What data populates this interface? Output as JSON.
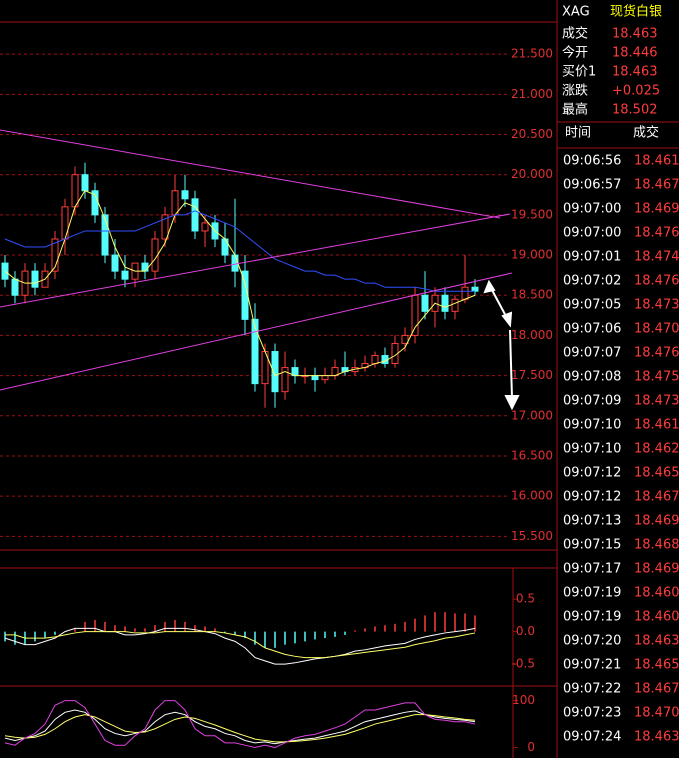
{
  "header": {
    "symbol": "XAG",
    "name": "现货白银"
  },
  "quote": [
    {
      "label": "成交",
      "value": "18.463"
    },
    {
      "label": "今开",
      "value": "18.446"
    },
    {
      "label": "买价1",
      "value": "18.463"
    },
    {
      "label": "涨跌",
      "value": "+0.025"
    },
    {
      "label": "最高",
      "value": "18.502"
    }
  ],
  "trades": {
    "columns": [
      "时间",
      "成交"
    ],
    "rows": [
      [
        "09:06:56",
        "18.461"
      ],
      [
        "09:06:57",
        "18.467"
      ],
      [
        "09:07:00",
        "18.469"
      ],
      [
        "09:07:00",
        "18.476"
      ],
      [
        "09:07:01",
        "18.474"
      ],
      [
        "09:07:02",
        "18.476"
      ],
      [
        "09:07:05",
        "18.473"
      ],
      [
        "09:07:06",
        "18.470"
      ],
      [
        "09:07:07",
        "18.476"
      ],
      [
        "09:07:08",
        "18.475"
      ],
      [
        "09:07:09",
        "18.473"
      ],
      [
        "09:07:10",
        "18.461"
      ],
      [
        "09:07:10",
        "18.462"
      ],
      [
        "09:07:12",
        "18.465"
      ],
      [
        "09:07:12",
        "18.467"
      ],
      [
        "09:07:13",
        "18.469"
      ],
      [
        "09:07:15",
        "18.468"
      ],
      [
        "09:07:17",
        "18.469"
      ],
      [
        "09:07:19",
        "18.460"
      ],
      [
        "09:07:19",
        "18.460"
      ],
      [
        "09:07:20",
        "18.463"
      ],
      [
        "09:07:21",
        "18.465"
      ],
      [
        "09:07:22",
        "18.467"
      ],
      [
        "09:07:23",
        "18.470"
      ],
      [
        "09:07:24",
        "18.463"
      ]
    ]
  },
  "chart_data": [
    {
      "type": "candlestick",
      "grid": true,
      "up_color": "#ff3c3c",
      "down_color": "#54fcfc",
      "ylim": [
        15.33,
        21.9
      ],
      "yticks": [
        {
          "value": 21.5,
          "label": "21.500"
        },
        {
          "value": 21,
          "label": "21.000"
        },
        {
          "value": 20.5,
          "label": "20.500"
        },
        {
          "value": 20,
          "label": "20.000"
        },
        {
          "value": 19.5,
          "label": "19.500"
        },
        {
          "value": 19,
          "label": "19.000"
        },
        {
          "value": 18.5,
          "label": "18.500"
        },
        {
          "value": 18,
          "label": "18.000"
        },
        {
          "value": 17.5,
          "label": "17.500"
        },
        {
          "value": 17,
          "label": "17.000"
        },
        {
          "value": 16.5,
          "label": "16.500"
        },
        {
          "value": 16,
          "label": "16.000"
        },
        {
          "value": 15.5,
          "label": "15.500"
        }
      ],
      "open": [
        18.9,
        18.7,
        18.5,
        18.8,
        18.6,
        18.8,
        19.2,
        19.6,
        20.0,
        19.8,
        19.5,
        19.0,
        18.8,
        18.7,
        18.9,
        18.8,
        19.2,
        19.5,
        19.8,
        19.7,
        19.3,
        19.4,
        19.2,
        19.0,
        18.8,
        18.2,
        17.4,
        17.8,
        17.3,
        17.6,
        17.5,
        17.5,
        17.45,
        17.5,
        17.6,
        17.55,
        17.6,
        17.65,
        17.75,
        17.65,
        17.9,
        18.0,
        18.5,
        18.3,
        18.5,
        18.3,
        18.45,
        18.6
      ],
      "high": [
        19.0,
        18.8,
        18.9,
        18.9,
        18.9,
        19.3,
        19.7,
        20.1,
        20.15,
        19.9,
        19.6,
        19.2,
        19.0,
        18.9,
        19.0,
        19.3,
        19.6,
        20.0,
        20.0,
        19.8,
        19.5,
        19.5,
        19.4,
        19.7,
        19.0,
        18.4,
        17.9,
        17.9,
        17.8,
        17.7,
        17.6,
        17.6,
        17.6,
        17.7,
        17.8,
        17.7,
        17.75,
        17.8,
        17.85,
        18.0,
        18.1,
        18.6,
        18.8,
        18.6,
        18.6,
        18.5,
        19.0,
        18.7
      ],
      "low": [
        18.6,
        18.4,
        18.4,
        18.5,
        18.6,
        18.7,
        19.0,
        19.5,
        19.7,
        19.4,
        18.9,
        18.7,
        18.6,
        18.6,
        18.7,
        18.7,
        19.1,
        19.4,
        19.6,
        19.2,
        19.1,
        19.1,
        18.9,
        18.6,
        18.0,
        17.3,
        17.1,
        17.1,
        17.2,
        17.4,
        17.4,
        17.3,
        17.4,
        17.45,
        17.5,
        17.5,
        17.55,
        17.6,
        17.6,
        17.6,
        17.8,
        17.9,
        18.2,
        18.1,
        18.2,
        18.2,
        18.4,
        18.5
      ],
      "close": [
        18.7,
        18.5,
        18.8,
        18.6,
        18.8,
        19.2,
        19.6,
        20.0,
        19.8,
        19.5,
        19.0,
        18.8,
        18.7,
        18.9,
        18.8,
        19.2,
        19.5,
        19.8,
        19.7,
        19.3,
        19.4,
        19.2,
        19.0,
        18.8,
        18.2,
        17.4,
        17.8,
        17.3,
        17.6,
        17.5,
        17.5,
        17.45,
        17.5,
        17.6,
        17.55,
        17.6,
        17.65,
        17.75,
        17.65,
        17.9,
        18.0,
        18.5,
        18.3,
        18.5,
        18.3,
        18.45,
        18.6,
        18.55
      ],
      "lines": [
        {
          "color": "#ffff66",
          "values": [
            18.8,
            18.7,
            18.65,
            18.65,
            18.7,
            18.85,
            19.2,
            19.6,
            19.8,
            19.75,
            19.45,
            19.1,
            18.85,
            18.8,
            18.8,
            18.95,
            19.15,
            19.5,
            19.65,
            19.6,
            19.45,
            19.3,
            19.2,
            19.0,
            18.65,
            18.1,
            17.8,
            17.5,
            17.55,
            17.5,
            17.5,
            17.5,
            17.5,
            17.5,
            17.55,
            17.58,
            17.6,
            17.65,
            17.68,
            17.75,
            17.85,
            18.1,
            18.25,
            18.4,
            18.35,
            18.4,
            18.45,
            18.5
          ]
        },
        {
          "color": "#3050ff",
          "values": [
            19.2,
            19.15,
            19.1,
            19.1,
            19.1,
            19.15,
            19.2,
            19.25,
            19.3,
            19.3,
            19.3,
            19.3,
            19.3,
            19.3,
            19.35,
            19.4,
            19.45,
            19.5,
            19.5,
            19.55,
            19.5,
            19.45,
            19.4,
            19.35,
            19.25,
            19.15,
            19.05,
            18.95,
            18.9,
            18.85,
            18.8,
            18.8,
            18.75,
            18.75,
            18.7,
            18.7,
            18.65,
            18.65,
            18.6,
            18.6,
            18.6,
            18.6,
            18.58,
            18.55,
            18.55,
            18.55,
            18.55,
            18.55
          ]
        }
      ]
    },
    {
      "type": "macd",
      "up_color": "#ff3c3c",
      "down_color": "#54fcfc",
      "ylim": [
        -0.56,
        0.98
      ],
      "yticks": [
        0.5,
        {
          "value": 0,
          "label": "0.0"
        },
        {
          "value": -0.5,
          "label": "-0.5"
        }
      ],
      "values": [
        -0.15,
        -0.2,
        -0.2,
        -0.15,
        -0.1,
        -0.05,
        0.0,
        0.05,
        0.15,
        0.18,
        0.15,
        0.1,
        0.08,
        0.05,
        0.05,
        0.1,
        0.15,
        0.18,
        0.15,
        0.1,
        0.08,
        0.05,
        -0.02,
        -0.05,
        -0.1,
        -0.2,
        -0.25,
        -0.25,
        -0.2,
        -0.18,
        -0.15,
        -0.12,
        -0.1,
        -0.08,
        -0.05,
        0.02,
        0.05,
        0.08,
        0.1,
        0.12,
        0.15,
        0.2,
        0.25,
        0.3,
        0.3,
        0.28,
        0.28,
        0.25
      ],
      "lines": [
        {
          "color": "#ffffff",
          "values": [
            -0.1,
            -0.15,
            -0.2,
            -0.2,
            -0.15,
            -0.1,
            0.0,
            0.05,
            0.05,
            0.05,
            0.0,
            0.0,
            -0.05,
            -0.05,
            -0.03,
            0.0,
            0.05,
            0.05,
            0.05,
            0.03,
            0.0,
            -0.03,
            -0.1,
            -0.15,
            -0.25,
            -0.4,
            -0.45,
            -0.5,
            -0.5,
            -0.48,
            -0.45,
            -0.42,
            -0.4,
            -0.38,
            -0.35,
            -0.3,
            -0.28,
            -0.25,
            -0.22,
            -0.2,
            -0.18,
            -0.12,
            -0.08,
            -0.05,
            -0.02,
            0.0,
            0.02,
            0.05
          ]
        },
        {
          "color": "#ffff66",
          "values": [
            -0.05,
            -0.05,
            -0.1,
            -0.1,
            -0.1,
            -0.08,
            -0.05,
            -0.02,
            0.0,
            0.0,
            0.0,
            0.0,
            0.0,
            -0.02,
            -0.02,
            -0.02,
            0.0,
            0.0,
            0.0,
            0.0,
            0.0,
            0.0,
            -0.02,
            -0.05,
            -0.08,
            -0.15,
            -0.25,
            -0.3,
            -0.35,
            -0.38,
            -0.4,
            -0.4,
            -0.4,
            -0.38,
            -0.36,
            -0.34,
            -0.32,
            -0.3,
            -0.28,
            -0.26,
            -0.24,
            -0.2,
            -0.17,
            -0.14,
            -0.1,
            -0.08,
            -0.05,
            -0.02
          ]
        }
      ]
    },
    {
      "type": "line",
      "ylim": [
        -18,
        131
      ],
      "yticks": [
        100,
        0
      ],
      "lines": [
        {
          "color": "#ffffff",
          "values": [
            20,
            15,
            20,
            25,
            35,
            60,
            75,
            80,
            75,
            60,
            40,
            30,
            25,
            30,
            35,
            55,
            70,
            75,
            70,
            55,
            45,
            40,
            30,
            25,
            15,
            10,
            12,
            8,
            12,
            15,
            18,
            20,
            25,
            30,
            35,
            45,
            55,
            60,
            65,
            70,
            75,
            78,
            70,
            65,
            62,
            60,
            58,
            55
          ]
        },
        {
          "color": "#ffff66",
          "values": [
            25,
            22,
            20,
            22,
            28,
            40,
            55,
            65,
            70,
            65,
            55,
            45,
            35,
            32,
            33,
            40,
            50,
            60,
            65,
            62,
            55,
            48,
            40,
            32,
            25,
            18,
            15,
            12,
            12,
            13,
            15,
            17,
            20,
            24,
            28,
            35,
            42,
            50,
            55,
            60,
            65,
            70,
            70,
            68,
            65,
            63,
            60,
            58
          ]
        },
        {
          "color": "#e040e0",
          "values": [
            10,
            5,
            20,
            30,
            50,
            90,
            100,
            100,
            85,
            50,
            15,
            5,
            5,
            25,
            40,
            80,
            100,
            100,
            80,
            40,
            25,
            25,
            10,
            10,
            5,
            0,
            5,
            0,
            10,
            20,
            25,
            28,
            35,
            42,
            50,
            65,
            80,
            80,
            85,
            90,
            95,
            95,
            70,
            60,
            58,
            55,
            55,
            50
          ]
        }
      ]
    }
  ]
}
